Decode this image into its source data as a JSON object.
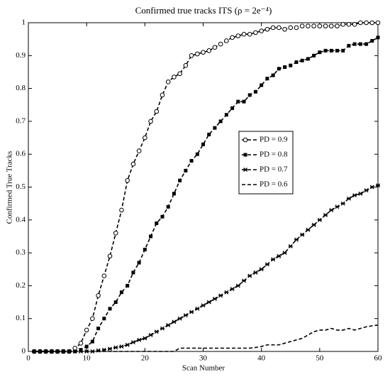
{
  "chart_data": {
    "type": "line",
    "title": "Confirmed true tracks ITS (ρ = 2e⁻⁴)",
    "xlabel": "Scan Number",
    "ylabel": "Confirmed True Tracks",
    "x": [
      1,
      2,
      3,
      4,
      5,
      6,
      7,
      8,
      9,
      10,
      11,
      12,
      13,
      14,
      15,
      16,
      17,
      18,
      19,
      20,
      21,
      22,
      23,
      24,
      25,
      26,
      27,
      28,
      29,
      30,
      31,
      32,
      33,
      34,
      35,
      36,
      37,
      38,
      39,
      40,
      41,
      42,
      43,
      44,
      45,
      46,
      47,
      48,
      49,
      50,
      51,
      52,
      53,
      54,
      55,
      56,
      57,
      58,
      59,
      60
    ],
    "xlim": [
      0,
      60
    ],
    "xticks": [
      0,
      10,
      20,
      30,
      40,
      50,
      60
    ],
    "ylim": [
      0,
      1
    ],
    "yticks": [
      0,
      0.1,
      0.2,
      0.3,
      0.4,
      0.5,
      0.6,
      0.7,
      0.8,
      0.9,
      1
    ],
    "legend": "center right",
    "series": [
      {
        "name": "PD = 0.9",
        "color": "#000000",
        "marker": "circle",
        "values": [
          0,
          0,
          0,
          0,
          0,
          0,
          0,
          0.01,
          0.025,
          0.065,
          0.1,
          0.17,
          0.23,
          0.29,
          0.36,
          0.43,
          0.52,
          0.57,
          0.61,
          0.65,
          0.7,
          0.73,
          0.78,
          0.82,
          0.835,
          0.845,
          0.87,
          0.9,
          0.905,
          0.91,
          0.915,
          0.925,
          0.935,
          0.945,
          0.955,
          0.96,
          0.965,
          0.965,
          0.97,
          0.975,
          0.98,
          0.985,
          0.985,
          0.98,
          0.985,
          0.985,
          0.99,
          0.99,
          0.99,
          0.99,
          0.99,
          0.99,
          0.99,
          0.995,
          0.995,
          0.995,
          1,
          1,
          1,
          1
        ]
      },
      {
        "name": "PD = 0.8",
        "color": "#000000",
        "marker": "square",
        "values": [
          0,
          0,
          0,
          0,
          0,
          0,
          0,
          0,
          0.005,
          0.015,
          0.03,
          0.07,
          0.1,
          0.13,
          0.15,
          0.18,
          0.2,
          0.24,
          0.27,
          0.31,
          0.35,
          0.39,
          0.41,
          0.44,
          0.48,
          0.52,
          0.55,
          0.58,
          0.6,
          0.63,
          0.66,
          0.68,
          0.7,
          0.72,
          0.74,
          0.76,
          0.76,
          0.78,
          0.79,
          0.81,
          0.83,
          0.84,
          0.86,
          0.865,
          0.87,
          0.88,
          0.885,
          0.89,
          0.9,
          0.91,
          0.915,
          0.915,
          0.915,
          0.915,
          0.93,
          0.935,
          0.935,
          0.935,
          0.945,
          0.955
        ]
      },
      {
        "name": "PD = 0.7",
        "color": "#000000",
        "marker": "star",
        "values": [
          0,
          0,
          0,
          0,
          0,
          0,
          0,
          0,
          0,
          0,
          0,
          0.003,
          0.005,
          0.008,
          0.012,
          0.015,
          0.02,
          0.028,
          0.035,
          0.04,
          0.05,
          0.06,
          0.07,
          0.08,
          0.09,
          0.1,
          0.11,
          0.12,
          0.13,
          0.14,
          0.15,
          0.16,
          0.17,
          0.18,
          0.19,
          0.2,
          0.215,
          0.23,
          0.24,
          0.25,
          0.265,
          0.28,
          0.29,
          0.3,
          0.32,
          0.34,
          0.355,
          0.37,
          0.385,
          0.4,
          0.415,
          0.43,
          0.44,
          0.45,
          0.465,
          0.475,
          0.48,
          0.49,
          0.5,
          0.505
        ]
      },
      {
        "name": "PD = 0.6",
        "color": "#000000",
        "marker": "none",
        "values": [
          0,
          0,
          0,
          0,
          0,
          0,
          0,
          0,
          0,
          0,
          0,
          0,
          0,
          0,
          0,
          0,
          0,
          0,
          0,
          0,
          0,
          0,
          0,
          0,
          0,
          0.01,
          0.01,
          0.01,
          0.01,
          0.01,
          0.01,
          0.01,
          0.01,
          0.01,
          0.01,
          0.01,
          0.01,
          0.01,
          0.012,
          0.015,
          0.02,
          0.02,
          0.02,
          0.025,
          0.03,
          0.035,
          0.04,
          0.05,
          0.06,
          0.065,
          0.065,
          0.07,
          0.065,
          0.065,
          0.07,
          0.065,
          0.07,
          0.075,
          0.078,
          0.08
        ]
      }
    ]
  }
}
